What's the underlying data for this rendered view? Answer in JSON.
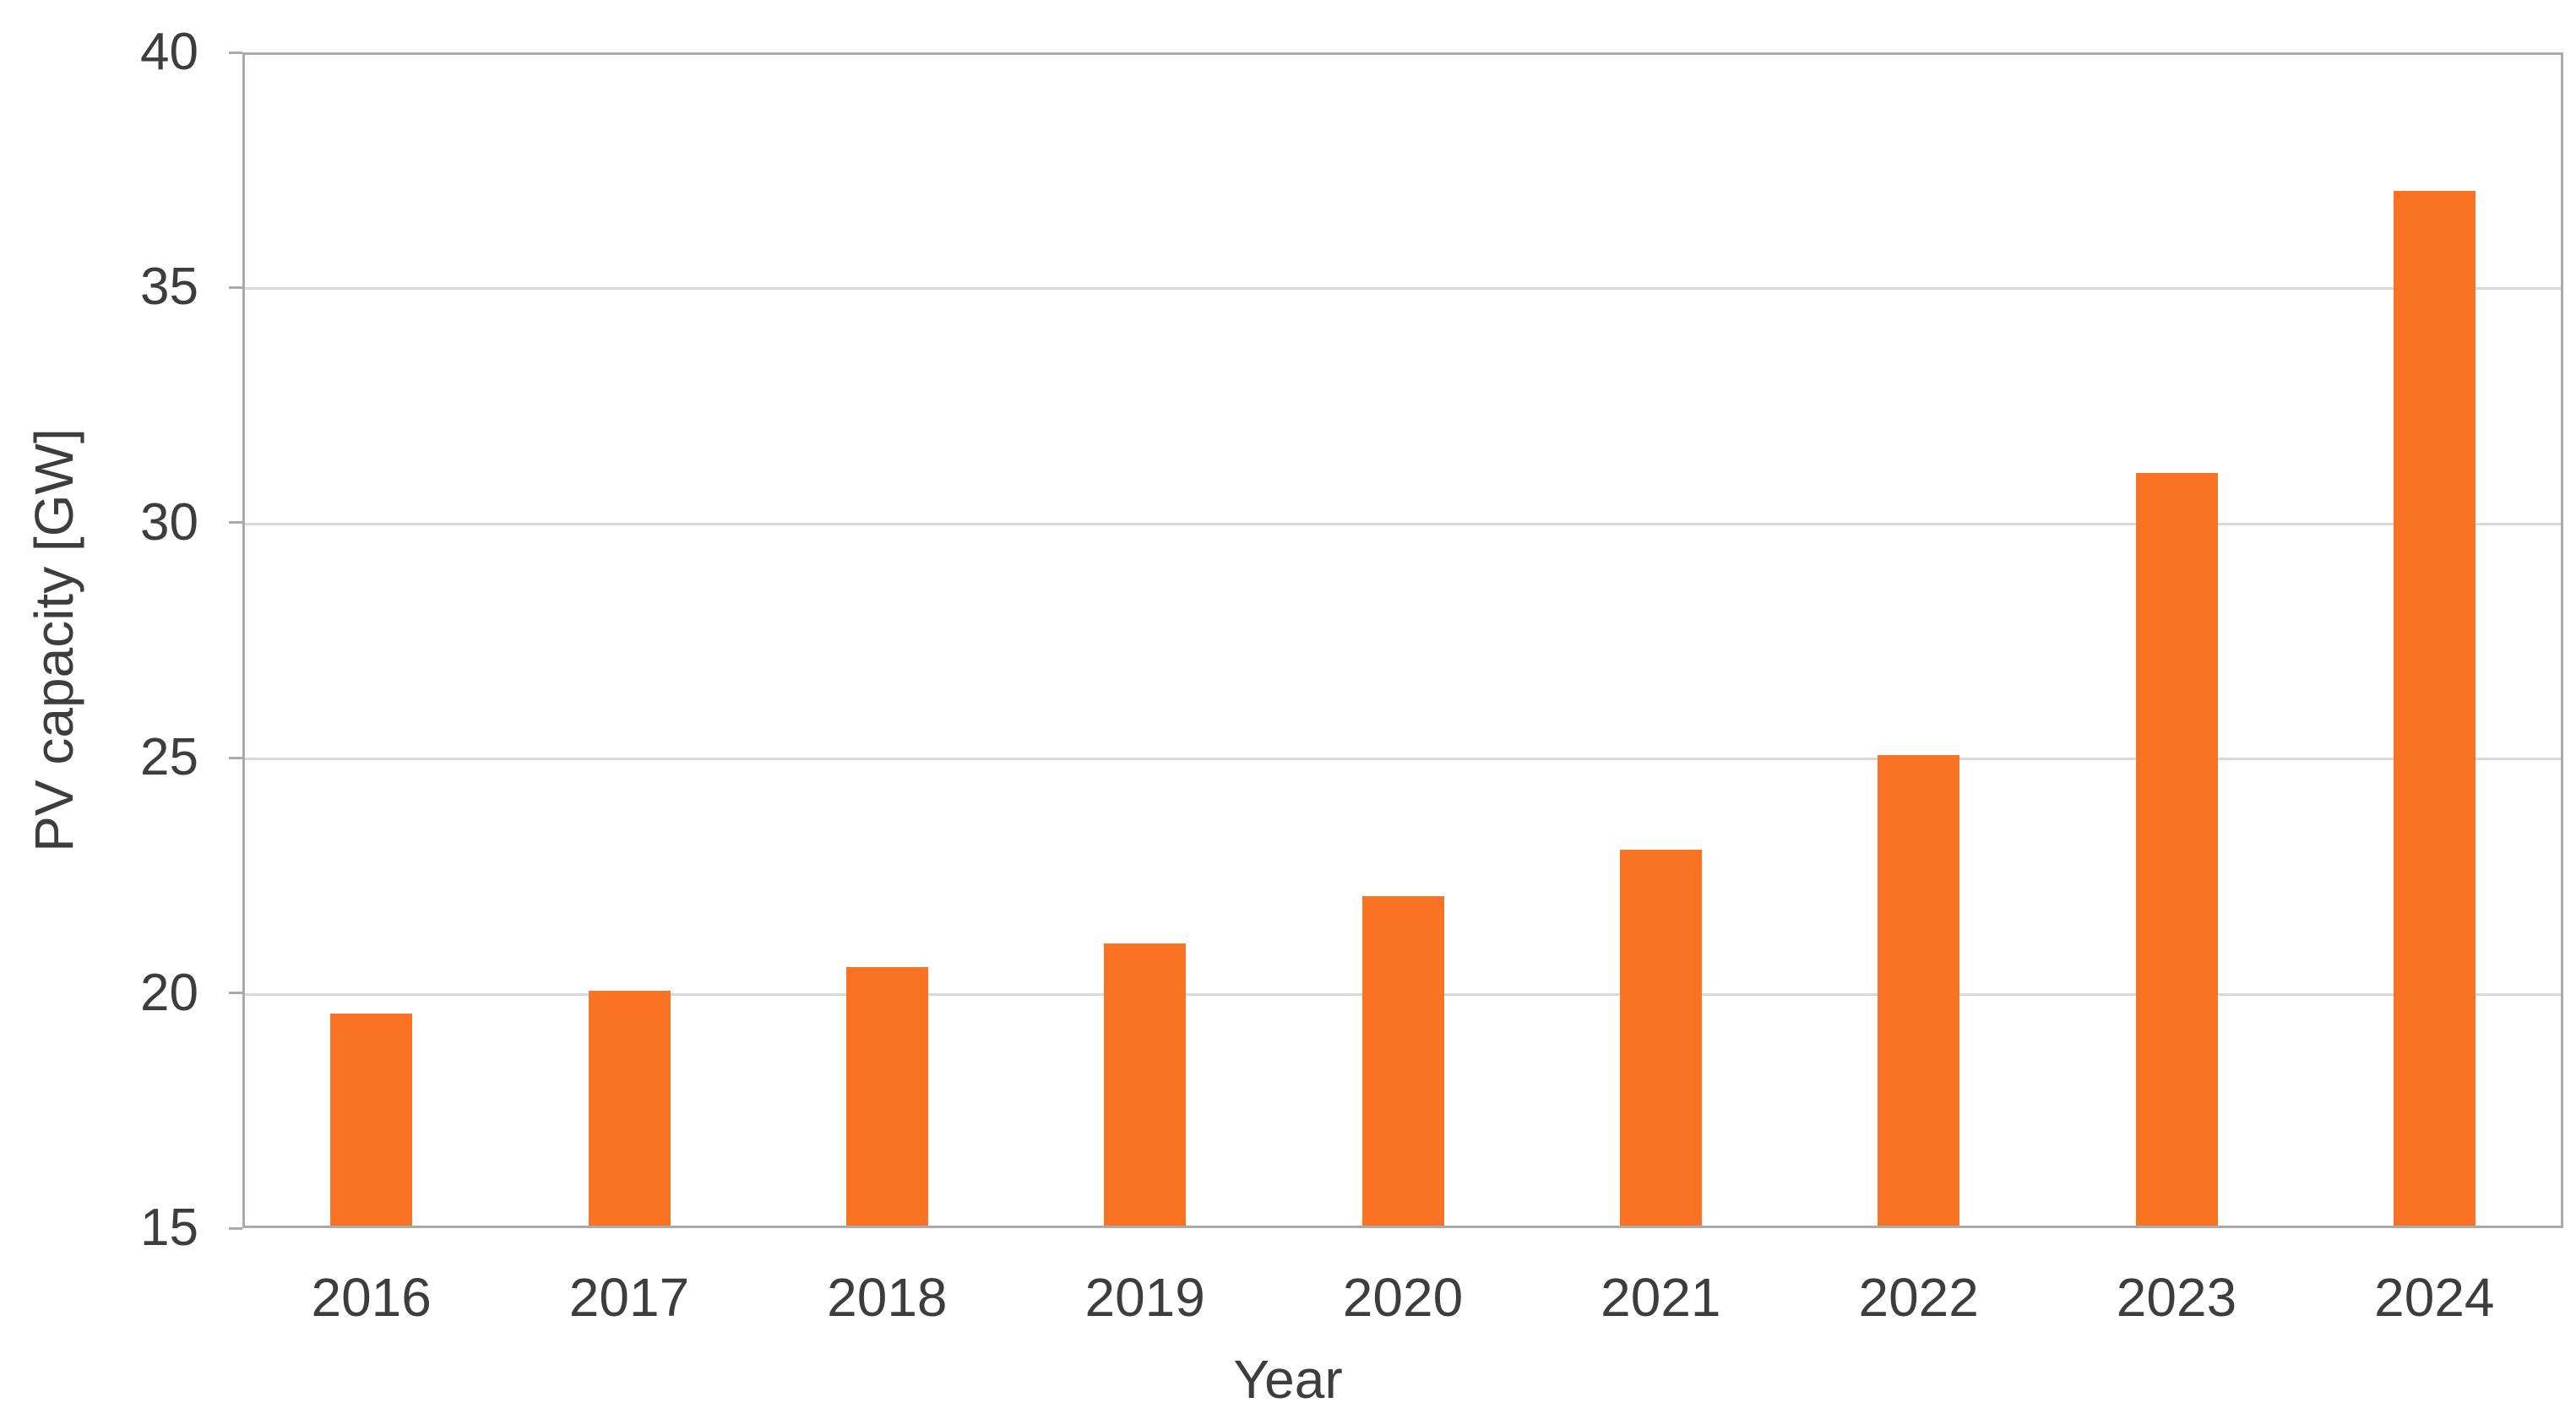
{
  "chart_data": {
    "type": "bar",
    "title": "",
    "categories": [
      "2016",
      "2017",
      "2018",
      "2019",
      "2020",
      "2021",
      "2022",
      "2023",
      "2024"
    ],
    "values": [
      19.5,
      20,
      20.5,
      21,
      22,
      23,
      25,
      31,
      37
    ],
    "xlabel": "Year",
    "ylabel": "PV capacity [GW]",
    "ylim": [
      15,
      40
    ],
    "yticks": [
      15,
      20,
      25,
      30,
      35,
      40
    ],
    "grid": "horizontal",
    "legend": "none",
    "colors": {
      "bar": "#F97322",
      "gridline": "#D9D9D9",
      "axis_border": "#AAAAAA",
      "text": "#3D3D3D",
      "background": "#FFFFFF"
    }
  }
}
